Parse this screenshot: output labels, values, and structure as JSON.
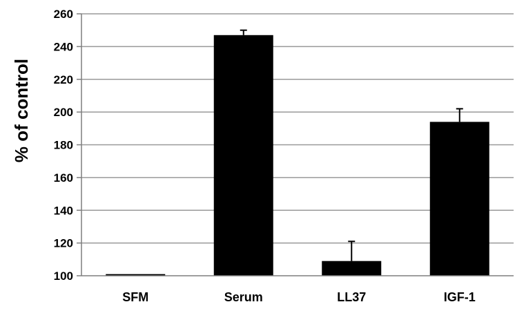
{
  "chart_data": {
    "type": "bar",
    "title": "",
    "xlabel": "",
    "ylabel": "% of control",
    "categories": [
      "SFM",
      "Serum",
      "LL37",
      "IGF-1"
    ],
    "values": [
      101,
      247,
      109,
      194
    ],
    "error_plus": [
      0,
      3,
      12,
      8
    ],
    "ylim": [
      100,
      260
    ],
    "yticks": [
      100,
      120,
      140,
      160,
      180,
      200,
      220,
      240,
      260
    ],
    "grid": true,
    "legend": "none",
    "colors": {
      "bar": "#000000",
      "grid": "#999999",
      "axis": "#7f7f7f"
    }
  }
}
